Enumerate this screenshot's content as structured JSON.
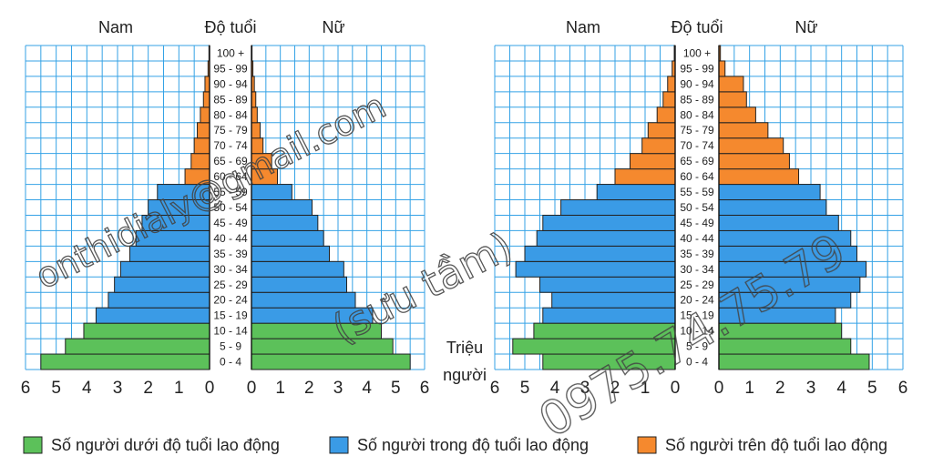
{
  "header": {
    "male_label": "Nam",
    "age_label": "Độ tuổi",
    "female_label": "Nữ",
    "unit_line1": "Triệu",
    "unit_line2": "người"
  },
  "legend": {
    "items": [
      {
        "label": "Số người dưới độ tuổi lao động",
        "color": "#5cc15a"
      },
      {
        "label": "Số người trong độ tuổi lao động",
        "color": "#3a9be6"
      },
      {
        "label": "Số người trên độ tuổi lao động",
        "color": "#f5892e"
      }
    ]
  },
  "watermark": {
    "email": "onthidialy@gmail.com",
    "note": "(sưu tầm)",
    "phone": "0975.74.75.79"
  },
  "chart_data": [
    {
      "type": "bar",
      "orientation": "horizontal population pyramid",
      "age_groups": [
        "0 - 4",
        "5 - 9",
        "10 - 14",
        "15 - 19",
        "20 - 24",
        "25 - 29",
        "30 - 34",
        "35 - 39",
        "40 - 44",
        "45 - 49",
        "50 - 54",
        "55 - 59",
        "60 - 64",
        "65 - 69",
        "70 - 74",
        "75 - 79",
        "80 - 84",
        "85 - 89",
        "90 - 94",
        "95 - 99",
        "100 +"
      ],
      "groups": [
        "under",
        "under",
        "under",
        "working",
        "working",
        "working",
        "working",
        "working",
        "working",
        "working",
        "working",
        "working",
        "over",
        "over",
        "over",
        "over",
        "over",
        "over",
        "over",
        "over",
        "over"
      ],
      "male": [
        5.5,
        4.7,
        4.1,
        3.7,
        3.3,
        3.1,
        2.9,
        2.6,
        2.4,
        2.2,
        2.0,
        1.7,
        0.8,
        0.6,
        0.5,
        0.4,
        0.3,
        0.2,
        0.15,
        0.05,
        0.02
      ],
      "female": [
        5.5,
        4.9,
        4.5,
        4.2,
        3.6,
        3.3,
        3.2,
        2.7,
        2.5,
        2.3,
        2.1,
        1.4,
        0.9,
        0.7,
        0.4,
        0.3,
        0.2,
        0.15,
        0.1,
        0.05,
        0.02
      ],
      "xticks": [
        6,
        5,
        4,
        3,
        2,
        1,
        0
      ],
      "xlim": [
        0,
        6
      ],
      "grid": true
    },
    {
      "type": "bar",
      "orientation": "horizontal population pyramid",
      "age_groups": [
        "0 - 4",
        "5 - 9",
        "10 - 14",
        "15 - 19",
        "20 - 24",
        "25 - 29",
        "30 - 34",
        "35 - 39",
        "40 - 44",
        "45 - 49",
        "50 - 54",
        "55 - 59",
        "60 - 64",
        "65 - 69",
        "70 - 74",
        "75 - 79",
        "80 - 84",
        "85 - 89",
        "90 - 94",
        "95 - 99",
        "100 +"
      ],
      "groups": [
        "under",
        "under",
        "under",
        "working",
        "working",
        "working",
        "working",
        "working",
        "working",
        "working",
        "working",
        "working",
        "over",
        "over",
        "over",
        "over",
        "over",
        "over",
        "over",
        "over",
        "over"
      ],
      "male": [
        4.4,
        5.4,
        4.7,
        4.4,
        4.1,
        4.5,
        5.3,
        5.0,
        4.6,
        4.4,
        3.8,
        2.6,
        2.0,
        1.5,
        1.1,
        0.9,
        0.6,
        0.4,
        0.25,
        0.1,
        0.03
      ],
      "female": [
        4.9,
        4.3,
        4.0,
        3.8,
        4.3,
        4.6,
        4.8,
        4.5,
        4.3,
        3.9,
        3.5,
        3.3,
        2.6,
        2.3,
        2.1,
        1.6,
        1.2,
        0.9,
        0.8,
        0.2,
        0.05
      ],
      "xticks": [
        6,
        5,
        4,
        3,
        2,
        1,
        0
      ],
      "xlim": [
        0,
        6
      ],
      "grid": true
    }
  ]
}
